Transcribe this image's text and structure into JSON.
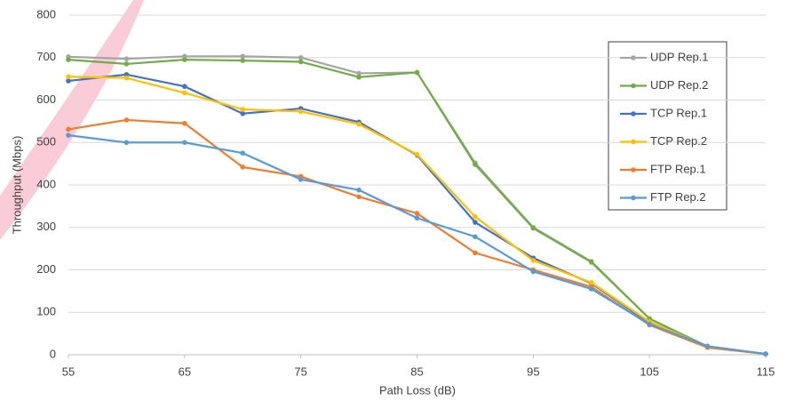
{
  "chart_data": {
    "type": "line",
    "x_label": "Path Loss (dB)",
    "y_label": "Throughput (Mbps)",
    "x": [
      55,
      60,
      65,
      70,
      75,
      80,
      85,
      90,
      95,
      100,
      105,
      110,
      115
    ],
    "xlim": [
      55,
      115
    ],
    "xticks": [
      55,
      65,
      75,
      85,
      95,
      105,
      115
    ],
    "ylim": [
      0,
      800
    ],
    "yticks": [
      0,
      100,
      200,
      300,
      400,
      500,
      600,
      700,
      800
    ],
    "grid": true,
    "legend": "right",
    "series": [
      {
        "name": "UDP Rep.1",
        "color": "#a5a5a5",
        "values": [
          702,
          697,
          703,
          703,
          700,
          663,
          665,
          452,
          300,
          220,
          85,
          20,
          2
        ]
      },
      {
        "name": "UDP Rep.2",
        "color": "#70ad47",
        "values": [
          695,
          685,
          695,
          693,
          690,
          654,
          665,
          448,
          298,
          218,
          85,
          18,
          2
        ]
      },
      {
        "name": "TCP Rep.1",
        "color": "#4472c4",
        "values": [
          645,
          660,
          632,
          568,
          580,
          548,
          470,
          312,
          228,
          168,
          75,
          18,
          2
        ]
      },
      {
        "name": "TCP Rep.2",
        "color": "#ffc000",
        "values": [
          655,
          652,
          617,
          578,
          573,
          543,
          472,
          325,
          222,
          170,
          78,
          18,
          2
        ]
      },
      {
        "name": "FTP Rep.1",
        "color": "#ed7d31",
        "values": [
          531,
          553,
          545,
          442,
          420,
          372,
          333,
          240,
          200,
          160,
          70,
          17,
          2
        ]
      },
      {
        "name": "FTP Rep.2",
        "color": "#5b9bd5",
        "values": [
          517,
          500,
          500,
          475,
          413,
          388,
          322,
          278,
          196,
          155,
          72,
          20,
          2
        ]
      }
    ]
  }
}
